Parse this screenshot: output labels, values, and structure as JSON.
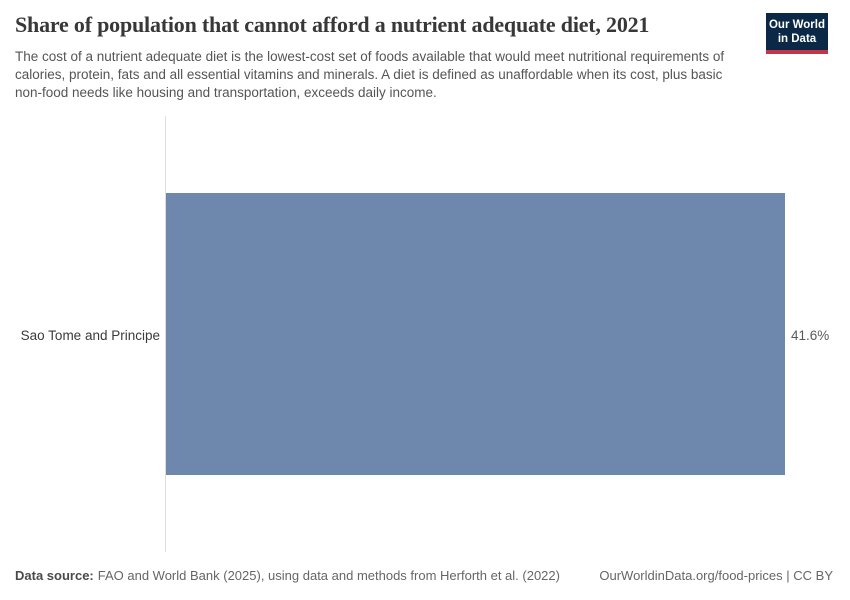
{
  "header": {
    "title": "Share of population that cannot afford a nutrient adequate diet, 2021",
    "subtitle": "The cost of a nutrient adequate diet is the lowest-cost set of foods available that would meet nutritional requirements of calories, protein, fats and all essential vitamins and minerals. A diet is defined as unaffordable when its cost, plus basic non-food needs like housing and transportation, exceeds daily income.",
    "logo": {
      "line1": "Our World",
      "line2": "in Data"
    }
  },
  "chart_data": {
    "type": "bar",
    "orientation": "horizontal",
    "title": "Share of population that cannot afford a nutrient adequate diet, 2021",
    "categories": [
      "Sao Tome and Principe"
    ],
    "values": [
      41.6
    ],
    "value_labels": [
      "41.6%"
    ],
    "unit": "%",
    "xlabel": "",
    "ylabel": "",
    "xlim": [
      0,
      41.6
    ],
    "grid": false,
    "legend": "none"
  },
  "footer": {
    "source_label": "Data source:",
    "source_text": "FAO and World Bank (2025), using data and methods from Herforth et al. (2022)",
    "right_text": "OurWorldinData.org/food-prices | CC BY"
  },
  "colors": {
    "bar": "#6e87ad",
    "logo_navy": "#0b2947",
    "logo_red": "#bf3649",
    "axis": "#dedede",
    "title": "#383838",
    "subtitle": "#555555",
    "entity_label": "#3b3b3b",
    "value_label": "#5a5a5a",
    "footer_text": "#666666",
    "footer_bold": "#4a4a4a"
  }
}
